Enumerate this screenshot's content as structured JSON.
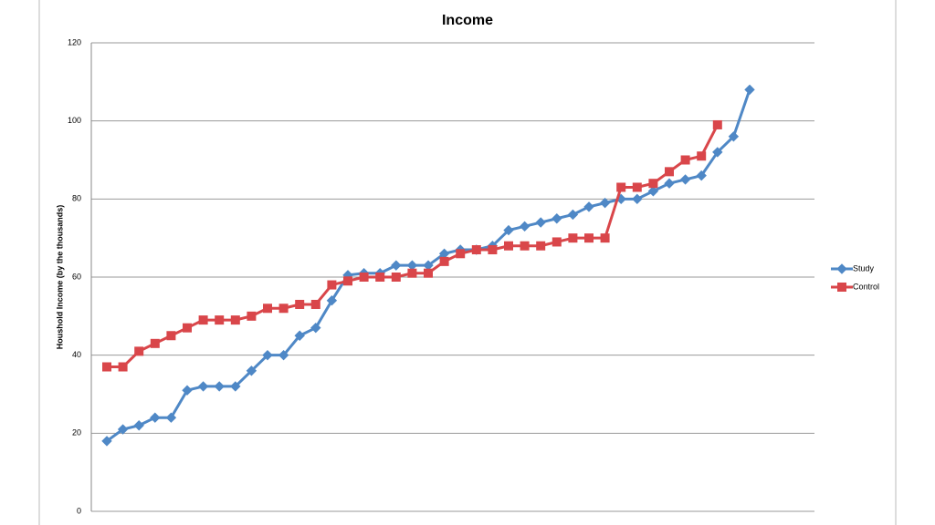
{
  "chart_data": {
    "type": "line",
    "title": "Income",
    "y_label": "Houshold Income (by the thousands)",
    "categories": [
      null,
      null,
      null,
      null,
      null,
      null,
      null,
      null,
      null,
      null,
      null,
      null,
      null,
      null,
      null,
      null,
      null,
      null,
      null,
      null,
      null,
      null,
      null,
      null,
      null,
      null,
      null,
      null,
      null,
      null,
      null,
      null,
      null,
      null,
      null,
      null,
      null,
      null,
      null,
      null,
      null
    ],
    "series": [
      {
        "name": "Study",
        "color": "#4f88c6",
        "marker": "diamond",
        "values": [
          18,
          21,
          22,
          24,
          24,
          31,
          32,
          32,
          32,
          36,
          40,
          40,
          45,
          47,
          54,
          60.5,
          61,
          61,
          63,
          63,
          63,
          66,
          67,
          67,
          68,
          72,
          73,
          74,
          75,
          76,
          78,
          79,
          80,
          80,
          82,
          84,
          85,
          86,
          92,
          96,
          108
        ]
      },
      {
        "name": "Control",
        "color": "#d9464a",
        "marker": "square",
        "values": [
          37,
          37,
          41,
          43,
          45,
          47,
          49,
          49,
          49,
          50,
          52,
          52,
          53,
          53,
          58,
          59,
          60,
          60,
          60,
          61,
          61,
          64,
          66,
          67,
          67,
          68,
          68,
          68,
          69,
          70,
          70,
          70,
          83,
          83,
          84,
          87,
          90,
          91,
          99,
          null,
          null
        ]
      }
    ],
    "ylim": [
      0,
      120
    ],
    "yticks": [
      0,
      20,
      40,
      60,
      80,
      100,
      120
    ],
    "grid": true,
    "legend": "right"
  }
}
